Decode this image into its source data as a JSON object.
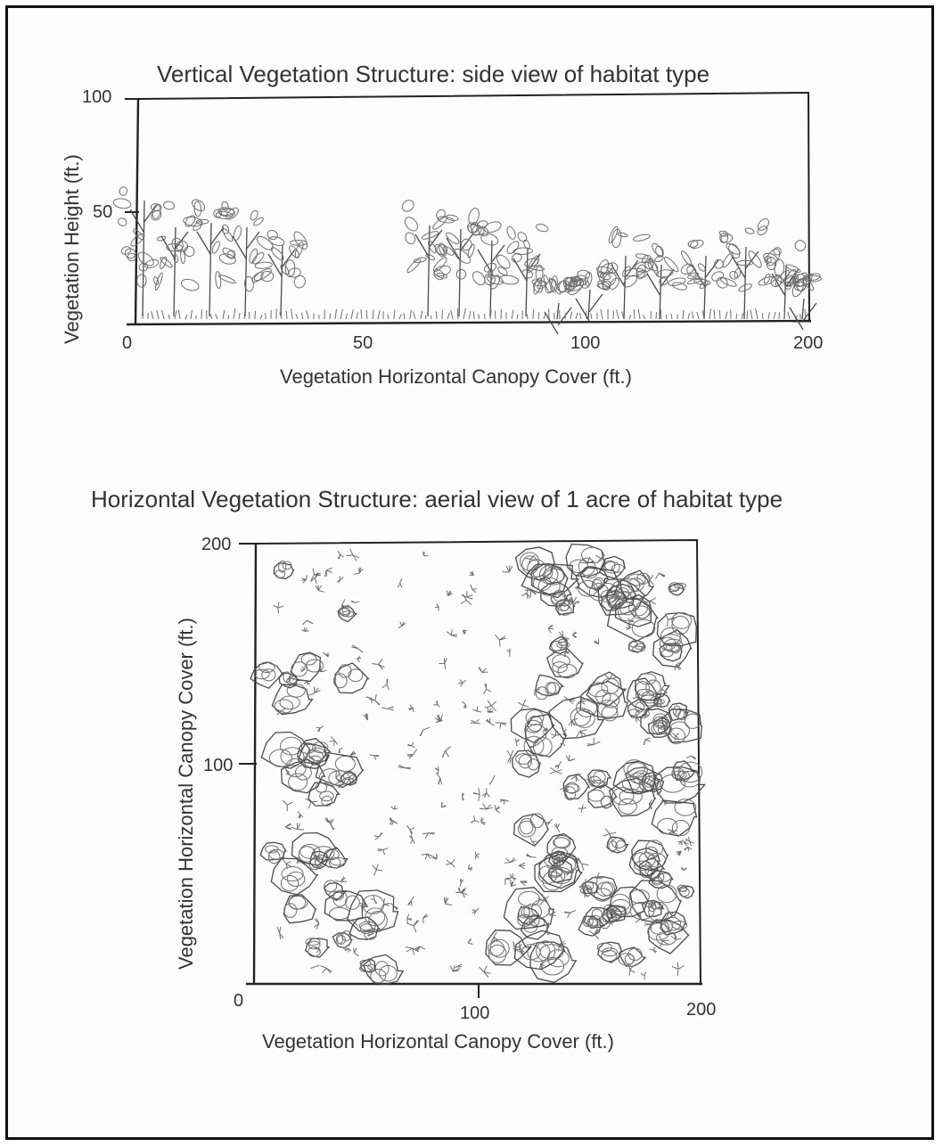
{
  "figure1": {
    "title": "Vertical Vegetation Structure: side view of habitat type",
    "xlabel": "Vegetation Horizontal Canopy Cover (ft.)",
    "ylabel": "Vegetation Height (ft.)",
    "xticks": [
      "0",
      "50",
      "100",
      "200"
    ],
    "yticks": [
      "100",
      "50"
    ]
  },
  "figure2": {
    "title": "Horizontal Vegetation Structure: aerial view of 1 acre of habitat type",
    "xlabel": "Vegetation Horizontal Canopy Cover (ft.)",
    "ylabel": "Vegetation Horizontal Canopy Cover (ft.)",
    "xticks": [
      "0",
      "100",
      "200"
    ],
    "yticks": [
      "200",
      "100"
    ]
  }
}
